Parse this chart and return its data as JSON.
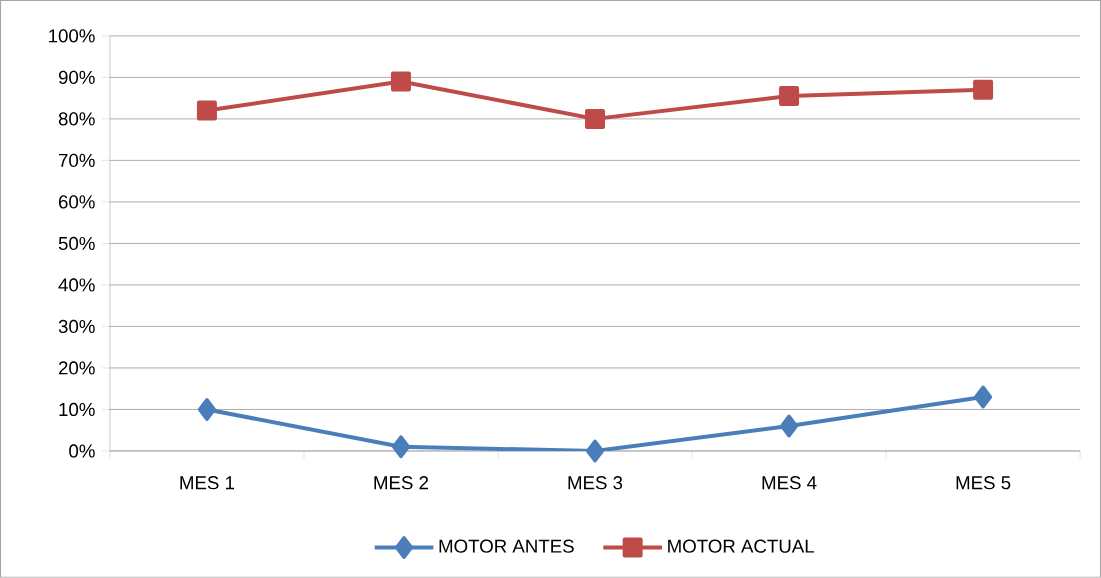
{
  "chart_data": {
    "type": "line",
    "categories": [
      "MES 1",
      "MES 2",
      "MES 3",
      "MES 4",
      "MES 5"
    ],
    "series": [
      {
        "name": "MOTOR ANTES",
        "color": "#4a7ebb",
        "marker": "diamond",
        "values": [
          10,
          1,
          0,
          6,
          13
        ]
      },
      {
        "name": "MOTOR ACTUAL",
        "color": "#be4b48",
        "marker": "square",
        "values": [
          82,
          89,
          80,
          85.5,
          87
        ]
      }
    ],
    "ylim": [
      0,
      100
    ],
    "yticks": [
      {
        "value": 0,
        "label": "0%"
      },
      {
        "value": 10,
        "label": "10%"
      },
      {
        "value": 20,
        "label": "20%"
      },
      {
        "value": 30,
        "label": "30%"
      },
      {
        "value": 40,
        "label": "40%"
      },
      {
        "value": 50,
        "label": "50%"
      },
      {
        "value": 60,
        "label": "60%"
      },
      {
        "value": 70,
        "label": "70%"
      },
      {
        "value": 80,
        "label": "80%"
      },
      {
        "value": 90,
        "label": "90%"
      },
      {
        "value": 100,
        "label": "100%"
      }
    ],
    "grid": "y",
    "legend": "bottom"
  }
}
